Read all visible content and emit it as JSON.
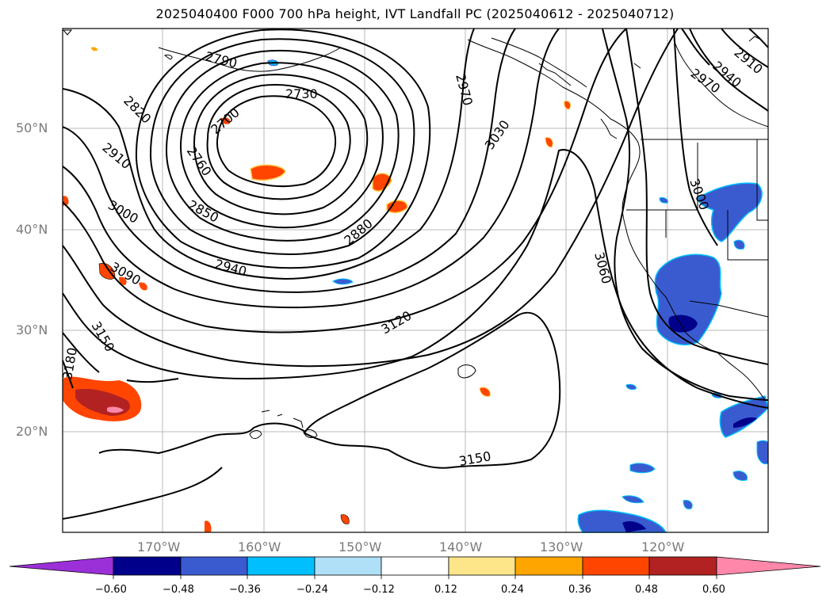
{
  "title": "2025040400 F000 700 hPa height, IVT Landfall PC (2025040612 - 2025040712)",
  "lat_labels": [
    "50°N",
    "40°N",
    "30°N",
    "20°N"
  ],
  "lon_labels": [
    "170°W",
    "160°W",
    "150°W",
    "140°W",
    "130°W",
    "120°W"
  ],
  "contour_labels": [
    "2790",
    "2730",
    "2820",
    "2700",
    "2910",
    "2760",
    "3000",
    "2850",
    "2880",
    "3090",
    "2940",
    "3150",
    "3180",
    "3120",
    "2970",
    "3030",
    "2970",
    "2940",
    "2910",
    "3060",
    "3000",
    "3150"
  ],
  "colorbar": {
    "ticks": [
      "−0.60",
      "−0.48",
      "−0.36",
      "−0.24",
      "−0.12",
      "0.12",
      "0.24",
      "0.36",
      "0.48",
      "0.60"
    ],
    "colors": [
      "#9b30d9",
      "#00008b",
      "#3a5bd0",
      "#00bfff",
      "#b0e0f8",
      "#ffffff",
      "#fde68a",
      "#ffa500",
      "#ff4500",
      "#b22222",
      "#ff88aa"
    ]
  },
  "shading_colors": {
    "neg_dark": "#00008b",
    "neg_mid": "#3a5bd0",
    "neg_light": "#00bfff",
    "neg_pale": "#b0e0f8",
    "pos_pale": "#fde68a",
    "pos_mid": "#ffa500",
    "pos_strong": "#ff4500",
    "pos_dark": "#b22222",
    "pos_max": "#ff88aa"
  }
}
